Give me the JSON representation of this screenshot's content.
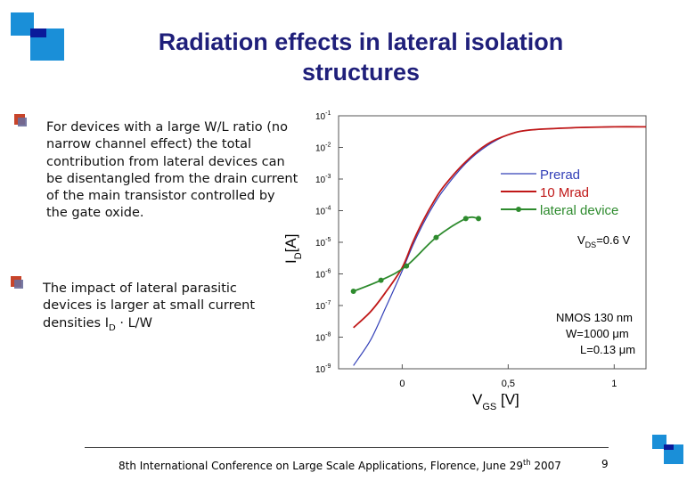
{
  "slide": {
    "title": "Radiation effects in lateral isolation structures",
    "bullet1": "For devices with a large W/L ratio (no narrow channel effect) the total contribution from lateral devices can be disentangled from the drain current of the main transistor controlled by the gate oxide.",
    "bullet2_main": "The impact of lateral parasitic devices is larger at small current densities I",
    "bullet2_sub": "D",
    "bullet2_tail": " · L/W",
    "footer_text": "8th International Conference on Large Scale Applications, Florence, June 29",
    "footer_sup": "th",
    "footer_year": " 2007",
    "page_number": "9"
  },
  "colors": {
    "title": "#1f1f7a",
    "logo_blue": "#1a8fd8",
    "logo_navy": "#0a1a9a",
    "bullet_red": "#c8442a",
    "prerad": "#3340b8",
    "mrad": "#c01818",
    "lateral": "#2e8b2e"
  },
  "chart_data": {
    "type": "line",
    "yscale": "log",
    "xlim": [
      -0.3,
      1.15
    ],
    "ylim_exponent": [
      -9,
      -1
    ],
    "x_ticks": [
      0,
      0.5,
      1
    ],
    "x_tick_labels": [
      "0",
      "0,5",
      "1"
    ],
    "y_tick_labels": [
      {
        "exp": -1,
        "text": "10",
        "sup": "-1"
      },
      {
        "exp": -2,
        "text": "10",
        "sup": "-2"
      },
      {
        "exp": -3,
        "text": "10",
        "sup": "-3"
      },
      {
        "exp": -4,
        "text": "10",
        "sup": "-4"
      },
      {
        "exp": -5,
        "text": "10",
        "sup": "-5"
      },
      {
        "exp": -6,
        "text": "10",
        "sup": "-6"
      },
      {
        "exp": -7,
        "text": "10",
        "sup": "-7"
      },
      {
        "exp": -8,
        "text": "10",
        "sup": "-8"
      },
      {
        "exp": -9,
        "text": "10",
        "sup": "-9"
      }
    ],
    "xlabel_main": "V",
    "xlabel_sub": "GS",
    "xlabel_unit": " [V]",
    "ylabel_main": "I",
    "ylabel_sub": "D",
    "ylabel_unit": "[A]",
    "series": [
      {
        "name": "Prerad",
        "color": "#3340b8",
        "x": [
          -0.23,
          -0.15,
          -0.08,
          0.0,
          0.05,
          0.1,
          0.15,
          0.2,
          0.3,
          0.4,
          0.5,
          0.6,
          0.8,
          1.0,
          1.15
        ],
        "logy": [
          -8.9,
          -8.1,
          -7.1,
          -5.9,
          -5.1,
          -4.4,
          -3.8,
          -3.3,
          -2.5,
          -1.95,
          -1.6,
          -1.45,
          -1.38,
          -1.35,
          -1.35
        ]
      },
      {
        "name": "10 Mrad",
        "color": "#c01818",
        "x": [
          -0.23,
          -0.15,
          -0.08,
          0.0,
          0.05,
          0.1,
          0.15,
          0.2,
          0.3,
          0.4,
          0.5,
          0.6,
          0.8,
          1.0,
          1.15
        ],
        "logy": [
          -7.7,
          -7.2,
          -6.6,
          -5.8,
          -5.0,
          -4.3,
          -3.7,
          -3.2,
          -2.45,
          -1.9,
          -1.6,
          -1.45,
          -1.38,
          -1.35,
          -1.35
        ]
      },
      {
        "name": "lateral device",
        "color": "#2e8b2e",
        "markers": true,
        "x": [
          -0.23,
          -0.1,
          0.02,
          0.16,
          0.3,
          0.36
        ],
        "logy": [
          -6.55,
          -6.2,
          -5.75,
          -4.85,
          -4.25,
          -4.25
        ]
      }
    ],
    "legend": [
      "Prerad",
      "10 Mrad",
      "lateral device"
    ],
    "legend_position": "top-right",
    "annotations": {
      "vds": {
        "main": "V",
        "sub": "DS",
        "tail": "=0.6 V"
      },
      "nmos": "NMOS 130 nm",
      "width": "W=1000 μm",
      "length": "L=0.13 μm"
    }
  }
}
